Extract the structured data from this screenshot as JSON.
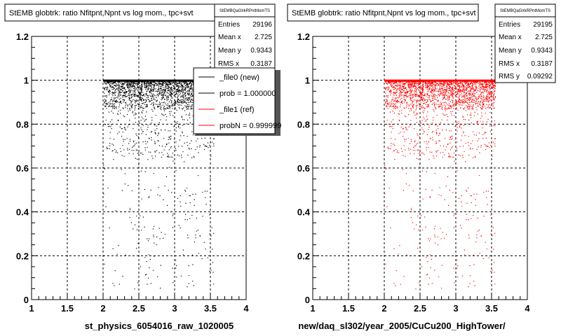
{
  "chart_data": [
    {
      "type": "scatter",
      "title": "StEMB globtrk: ratio Nfitpnt,Npnt vs log mom., tpc+svt",
      "xlabel": "st_physics_6054016_raw_1020005",
      "ylabel": "",
      "xlim": [
        1,
        4
      ],
      "ylim": [
        0,
        1.2
      ],
      "xticks": [
        "1",
        "1.5",
        "2",
        "2.5",
        "3",
        "3.5",
        "4"
      ],
      "yticks": [
        "0",
        "0.2",
        "0.4",
        "0.6",
        "0.8",
        "1",
        "1.2"
      ],
      "grid": true,
      "marker_color": "#000000",
      "point_region": {
        "x": [
          2,
          3.55
        ],
        "y_band": [
          0.9,
          1.0
        ]
      },
      "stats": {
        "name": "StEMBQaGlrkRPntMomTS",
        "rows": [
          {
            "label": "Entries",
            "value": "29196"
          },
          {
            "label": "Mean x",
            "value": "2.725"
          },
          {
            "label": "Mean y",
            "value": "0.9343"
          },
          {
            "label": "RMS x",
            "value": "0.3187"
          }
        ]
      },
      "legend": {
        "placement": "top-right",
        "entries": [
          {
            "label": "_file0 (new)",
            "color": "#000000"
          },
          {
            "label": "prob = 1.000000",
            "color": "#000000"
          },
          {
            "label": "_file1 (ref)",
            "color": "#ff0000"
          },
          {
            "label": "probN = 0.999999",
            "color": "#ff0000"
          }
        ]
      }
    },
    {
      "type": "scatter",
      "title": "StEMB globtrk: ratio Nfitpnt,Npnt vs log mom., tpc+svt",
      "xlabel": "new/daq_sl302/year_2005/CuCu200_HighTower/",
      "ylabel": "",
      "xlim": [
        1,
        4
      ],
      "ylim": [
        0,
        1.2
      ],
      "xticks": [
        "1",
        "1.5",
        "2",
        "2.5",
        "3",
        "3.5",
        "4"
      ],
      "yticks": [
        "0",
        "0.2",
        "0.4",
        "0.6",
        "0.8",
        "1",
        "1.2"
      ],
      "grid": true,
      "marker_color": "#ff0000",
      "point_region": {
        "x": [
          2,
          3.55
        ],
        "y_band": [
          0.9,
          1.0
        ]
      },
      "stats": {
        "name": "StEMBQaGlrkRPntMomTS",
        "rows": [
          {
            "label": "Entries",
            "value": "29195"
          },
          {
            "label": "Mean x",
            "value": "2.725"
          },
          {
            "label": "Mean y",
            "value": "0.9343"
          },
          {
            "label": "RMS x",
            "value": "0.3187"
          },
          {
            "label": "RMS y",
            "value": "0.09292"
          }
        ]
      }
    }
  ]
}
